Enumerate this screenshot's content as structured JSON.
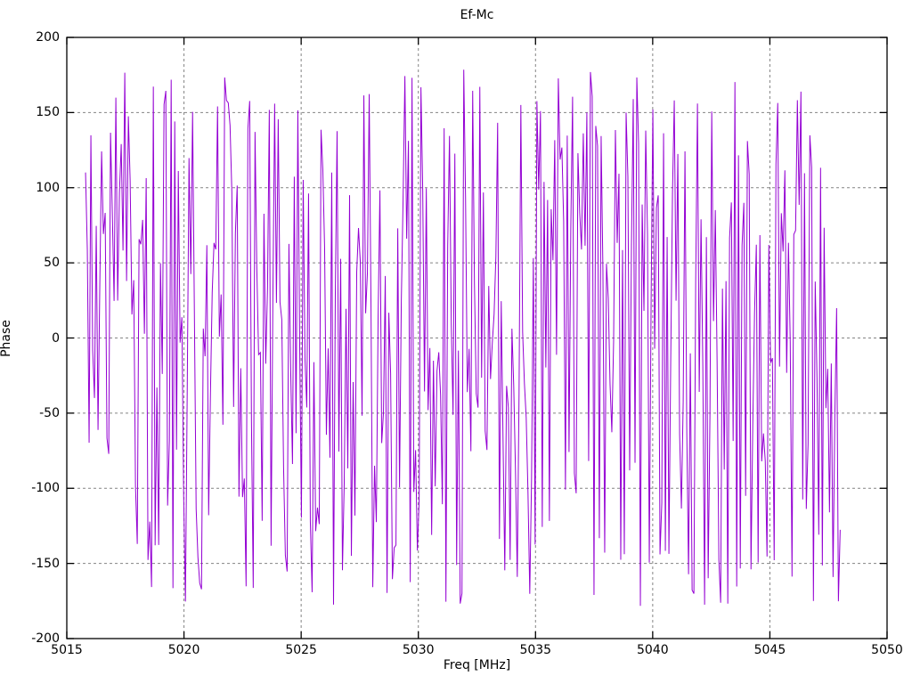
{
  "chart_data": {
    "type": "line",
    "title": "Ef-Mc",
    "xlabel": "Freq [MHz]",
    "ylabel": "Phase",
    "xlim": [
      5015,
      5050
    ],
    "ylim": [
      -200,
      200
    ],
    "xticks": [
      5015,
      5020,
      5025,
      5030,
      5035,
      5040,
      5045,
      5050
    ],
    "yticks": [
      -200,
      -150,
      -100,
      -50,
      0,
      50,
      100,
      150,
      200
    ],
    "grid": true,
    "grid_style": "dashed",
    "grid_color": "#848484",
    "border_color": "#000000",
    "legend": "none",
    "series": [
      {
        "name": "Ef-Mc phase",
        "color": "#9400D3",
        "x_start": 5015.8,
        "x_end": 5048.0,
        "n_points": 424,
        "y_min": -180,
        "y_max": 180,
        "y_distribution": "uniform random wrapped phase between -180 and 180 degrees (noise-like fringe phase)",
        "prng_seed": 20240517
      }
    ]
  }
}
